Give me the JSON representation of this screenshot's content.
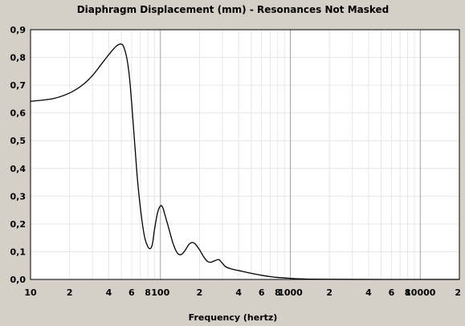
{
  "chart_data": {
    "type": "line",
    "title": "Diaphragm Displacement (mm) - Resonances Not Masked",
    "xlabel": "Frequency (hertz)",
    "ylabel": "",
    "x_scale": "log",
    "xlim": [
      10,
      20000
    ],
    "ylim": [
      0,
      0.9
    ],
    "grid": true,
    "y_ticks": [
      "0,0",
      "0,1",
      "0,2",
      "0,3",
      "0,4",
      "0,5",
      "0,6",
      "0,7",
      "0,8",
      "0,9"
    ],
    "x_ticks": [
      {
        "value": 10,
        "label": "10"
      },
      {
        "value": 20,
        "label": "2"
      },
      {
        "value": 40,
        "label": "4"
      },
      {
        "value": 60,
        "label": "6"
      },
      {
        "value": 80,
        "label": "8"
      },
      {
        "value": 100,
        "label": "100"
      },
      {
        "value": 200,
        "label": "2"
      },
      {
        "value": 400,
        "label": "4"
      },
      {
        "value": 600,
        "label": "6"
      },
      {
        "value": 800,
        "label": "8"
      },
      {
        "value": 1000,
        "label": "1000"
      },
      {
        "value": 2000,
        "label": "2"
      },
      {
        "value": 4000,
        "label": "4"
      },
      {
        "value": 6000,
        "label": "6"
      },
      {
        "value": 8000,
        "label": "8"
      },
      {
        "value": 10000,
        "label": "10000"
      },
      {
        "value": 20000,
        "label": "2"
      }
    ],
    "series": [
      {
        "color": "#000000",
        "x": [
          10,
          15,
          20,
          25,
          30,
          35,
          40,
          45,
          48,
          50,
          52,
          55,
          58,
          62,
          66,
          70,
          75,
          80,
          84,
          87,
          90,
          95,
          100,
          104,
          108,
          115,
          125,
          135,
          145,
          155,
          165,
          175,
          185,
          200,
          215,
          230,
          245,
          260,
          275,
          285,
          300,
          320,
          350,
          400,
          500,
          600,
          700,
          800,
          1000,
          1200,
          1500,
          2000,
          3000,
          5000,
          10000,
          20000
        ],
        "y": [
          0.642,
          0.652,
          0.672,
          0.7,
          0.735,
          0.775,
          0.81,
          0.838,
          0.847,
          0.848,
          0.84,
          0.8,
          0.72,
          0.55,
          0.38,
          0.26,
          0.16,
          0.118,
          0.112,
          0.13,
          0.18,
          0.24,
          0.265,
          0.26,
          0.235,
          0.19,
          0.13,
          0.095,
          0.09,
          0.105,
          0.125,
          0.133,
          0.128,
          0.107,
          0.082,
          0.065,
          0.062,
          0.067,
          0.071,
          0.07,
          0.058,
          0.045,
          0.038,
          0.032,
          0.022,
          0.015,
          0.01,
          0.007,
          0.004,
          0.002,
          0.001,
          0.0005,
          0.0002,
          0.0001,
          0.0,
          0.0
        ]
      }
    ]
  }
}
